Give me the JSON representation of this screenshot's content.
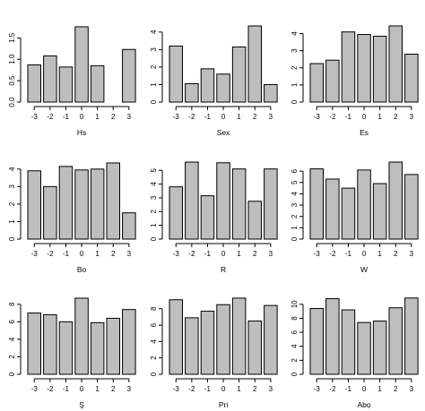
{
  "chart_data": [
    {
      "type": "bar",
      "xlabel": "Hs",
      "categories": [
        "-3",
        "-2",
        "-1",
        "0",
        "1",
        "2",
        "3"
      ],
      "values": [
        0.87,
        1.08,
        0.82,
        1.76,
        0.85,
        0.0,
        1.23
      ],
      "ylim": [
        0,
        1.8
      ],
      "yticks": [
        0.0,
        0.5,
        1.0,
        1.5
      ],
      "ytick_labels": [
        "0.0",
        "0.5",
        "1.0",
        "1.5"
      ]
    },
    {
      "type": "bar",
      "xlabel": "Sex",
      "categories": [
        "-3",
        "-2",
        "-1",
        "0",
        "1",
        "2",
        "3"
      ],
      "values": [
        3.2,
        1.05,
        1.9,
        1.6,
        3.15,
        4.35,
        1.0
      ],
      "ylim": [
        0,
        4.4
      ],
      "yticks": [
        0,
        1,
        2,
        3,
        4
      ],
      "ytick_labels": [
        "0",
        "1",
        "2",
        "3",
        "4"
      ]
    },
    {
      "type": "bar",
      "xlabel": "Es",
      "categories": [
        "-3",
        "-2",
        "-1",
        "0",
        "1",
        "2",
        "3"
      ],
      "values": [
        2.25,
        2.45,
        4.1,
        3.95,
        3.85,
        4.45,
        2.8
      ],
      "ylim": [
        0,
        4.5
      ],
      "yticks": [
        0,
        1,
        2,
        3,
        4
      ],
      "ytick_labels": [
        "0",
        "1",
        "2",
        "3",
        "4"
      ]
    },
    {
      "type": "bar",
      "xlabel": "Bo",
      "categories": [
        "-3",
        "-2",
        "-1",
        "0",
        "1",
        "2",
        "3"
      ],
      "values": [
        3.9,
        3.0,
        4.15,
        3.95,
        4.0,
        4.35,
        1.5
      ],
      "ylim": [
        0,
        4.4
      ],
      "yticks": [
        0,
        1,
        2,
        3,
        4
      ],
      "ytick_labels": [
        "0",
        "1",
        "2",
        "3",
        "4"
      ]
    },
    {
      "type": "bar",
      "xlabel": "R",
      "categories": [
        "-3",
        "-2",
        "-1",
        "0",
        "1",
        "2",
        "3"
      ],
      "values": [
        3.8,
        5.6,
        3.15,
        5.55,
        5.1,
        2.75,
        5.1
      ],
      "ylim": [
        0,
        5.6
      ],
      "yticks": [
        0,
        1,
        2,
        3,
        4,
        5
      ],
      "ytick_labels": [
        "0",
        "1",
        "2",
        "3",
        "4",
        "5"
      ]
    },
    {
      "type": "bar",
      "xlabel": "W",
      "categories": [
        "-3",
        "-2",
        "-1",
        "0",
        "1",
        "2",
        "3"
      ],
      "values": [
        6.2,
        5.3,
        4.5,
        6.1,
        4.9,
        6.8,
        5.7
      ],
      "ylim": [
        0,
        6.8
      ],
      "yticks": [
        0,
        1,
        2,
        3,
        4,
        5,
        6
      ],
      "ytick_labels": [
        "0",
        "1",
        "2",
        "3",
        "4",
        "5",
        "6"
      ]
    },
    {
      "type": "bar",
      "xlabel": "Ş",
      "categories": [
        "-3",
        "-2",
        "-1",
        "0",
        "1",
        "2",
        "3"
      ],
      "values": [
        7.0,
        6.8,
        6.0,
        8.7,
        5.9,
        6.4,
        7.4
      ],
      "ylim": [
        0,
        8.8
      ],
      "yticks": [
        0,
        2,
        4,
        6,
        8
      ],
      "ytick_labels": [
        "0",
        "2",
        "4",
        "6",
        "8"
      ]
    },
    {
      "type": "bar",
      "xlabel": "Pri",
      "categories": [
        "-3",
        "-2",
        "-1",
        "0",
        "1",
        "2",
        "3"
      ],
      "values": [
        9.1,
        6.9,
        7.7,
        8.5,
        9.3,
        6.5,
        8.4
      ],
      "ylim": [
        0,
        9.4
      ],
      "yticks": [
        0,
        2,
        4,
        6,
        8
      ],
      "ytick_labels": [
        "0",
        "2",
        "4",
        "6",
        "8"
      ]
    },
    {
      "type": "bar",
      "xlabel": "Abọ",
      "categories": [
        "-3",
        "-2",
        "-1",
        "0",
        "1",
        "2",
        "3"
      ],
      "values": [
        9.4,
        10.8,
        9.2,
        7.4,
        7.6,
        9.5,
        10.9
      ],
      "ylim": [
        0,
        11
      ],
      "yticks": [
        0,
        2,
        4,
        6,
        8,
        10
      ],
      "ytick_labels": [
        "0",
        "2",
        "4",
        "6",
        "8",
        "10"
      ]
    }
  ],
  "colors": {
    "bar_fill": "#bebebe",
    "bar_stroke": "#000000",
    "axis": "#000000"
  }
}
